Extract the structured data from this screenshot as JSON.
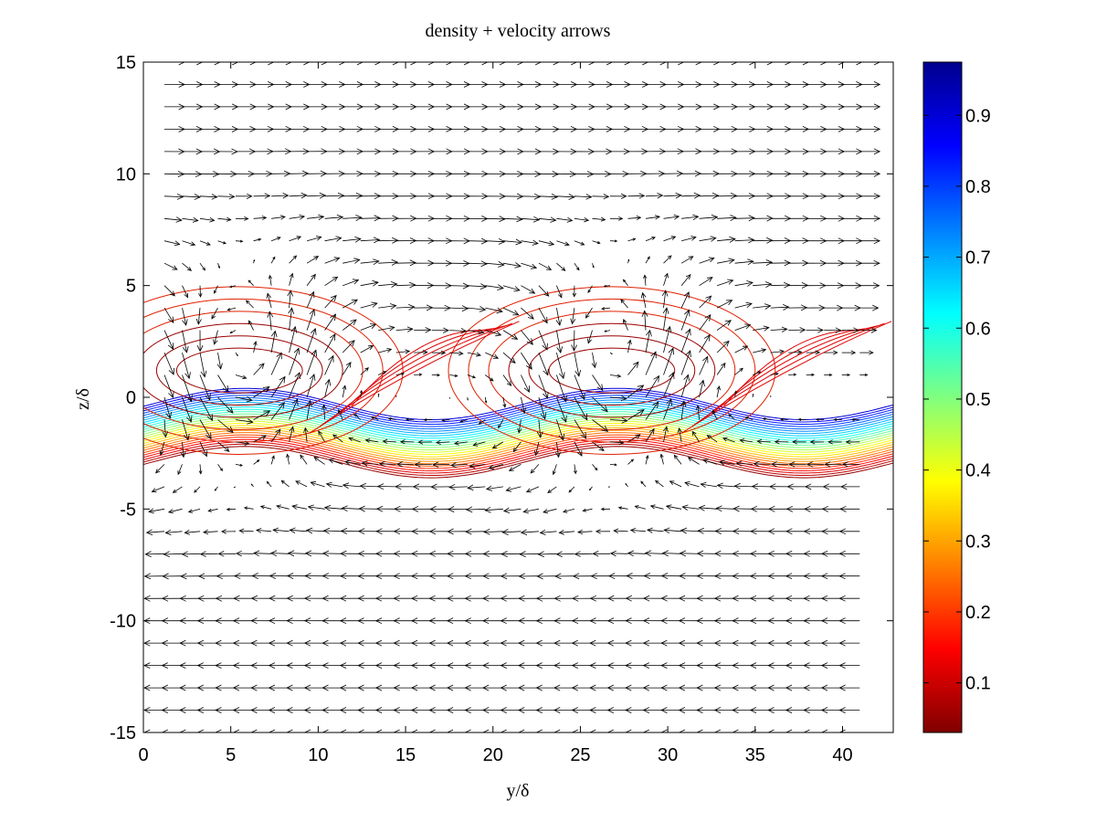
{
  "chart_data": {
    "type": "contour+quiver",
    "title": "density + velocity arrows",
    "xlabel": "y/δ",
    "ylabel": "z/δ",
    "xlim": [
      0,
      42.9
    ],
    "ylim": [
      -15,
      15
    ],
    "xticks": [
      "0",
      "5",
      "10",
      "15",
      "20",
      "25",
      "30",
      "35",
      "40"
    ],
    "yticks": [
      "-15",
      "-10",
      "-5",
      "0",
      "5",
      "10",
      "15"
    ],
    "colorbar": {
      "colormap": "jet",
      "range": [
        0.03,
        0.975
      ],
      "ticks": [
        "0.1",
        "0.2",
        "0.3",
        "0.4",
        "0.5",
        "0.6",
        "0.7",
        "0.8",
        "0.9"
      ],
      "tick_values": [
        0.1,
        0.2,
        0.3,
        0.4,
        0.5,
        0.6,
        0.7,
        0.8,
        0.9
      ],
      "placement": "right"
    },
    "vortices": [
      {
        "y": 5.5,
        "z": 1.2
      },
      {
        "y": 26.8,
        "z": 1.2
      }
    ],
    "shear_layer": {
      "center_z": -1.6,
      "amplitude": 0.7,
      "wavelength": 21.3
    },
    "arrow_rows_z": [
      15,
      14,
      13,
      12,
      11,
      10,
      9,
      8,
      7,
      6,
      5,
      4,
      3,
      2,
      1,
      0,
      -1,
      -2,
      -3,
      -4,
      -5,
      -6,
      -7,
      -8,
      -9,
      -10,
      -11,
      -12,
      -13,
      -14,
      -15
    ],
    "flow": "rightward for z > 0, leftward for z < 0",
    "grid": false,
    "legend": "none"
  }
}
